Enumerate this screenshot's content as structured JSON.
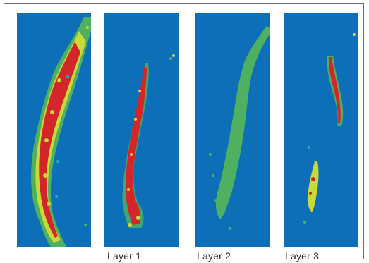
{
  "figure": {
    "panels": [
      {
        "id": "composite",
        "caption": ""
      },
      {
        "id": "layer-1",
        "caption": "Layer 1"
      },
      {
        "id": "layer-2",
        "caption": "Layer 2"
      },
      {
        "id": "layer-3",
        "caption": "Layer 3"
      }
    ],
    "colors": {
      "background": "#0c6fb8",
      "mid": "#4fb061",
      "high": "#c8d93a",
      "peak": "#d4252b",
      "edge": "#19b3b8"
    }
  }
}
